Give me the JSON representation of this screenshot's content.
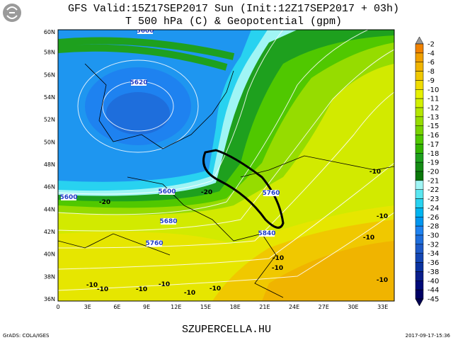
{
  "header": {
    "line1": "GFS Valid:15Z17SEP2017 Sun (Init:12Z17SEP2017 + 03h)",
    "line2": "T 500 hPa (C) & Geopotential (gpm)"
  },
  "map": {
    "lat_labels": [
      "60N",
      "58N",
      "56N",
      "54N",
      "52N",
      "50N",
      "48N",
      "46N",
      "44N",
      "42N",
      "40N",
      "38N",
      "36N"
    ],
    "lon_labels": [
      "0",
      "3E",
      "6E",
      "9E",
      "12E",
      "15E",
      "18E",
      "21E",
      "24E",
      "27E",
      "30E",
      "33E"
    ],
    "contour_labels": [
      "5600",
      "5620",
      "5600",
      "5600",
      "5680",
      "5760",
      "5760",
      "5840",
      "-20",
      "-20",
      "-10",
      "-10",
      "-10",
      "-10",
      "-10",
      "-10",
      "-10",
      "-10",
      "-10",
      "-10",
      "-10",
      "-10"
    ]
  },
  "colorbar": [
    {
      "value": -2,
      "color": "#f08200"
    },
    {
      "value": -4,
      "color": "#f0a000"
    },
    {
      "value": -6,
      "color": "#f0b400"
    },
    {
      "value": -8,
      "color": "#f0c800"
    },
    {
      "value": -9,
      "color": "#f0dc00"
    },
    {
      "value": -10,
      "color": "#e6f000"
    },
    {
      "value": -11,
      "color": "#d2f000"
    },
    {
      "value": -12,
      "color": "#b4e600"
    },
    {
      "value": -13,
      "color": "#96dc00"
    },
    {
      "value": -15,
      "color": "#78d200"
    },
    {
      "value": -16,
      "color": "#50c800"
    },
    {
      "value": -17,
      "color": "#32b400"
    },
    {
      "value": -18,
      "color": "#1ea01e"
    },
    {
      "value": -19,
      "color": "#148c14"
    },
    {
      "value": -20,
      "color": "#0a780a"
    },
    {
      "value": -21,
      "color": "#a0f5f5"
    },
    {
      "value": -22,
      "color": "#5ae6f0"
    },
    {
      "value": -23,
      "color": "#28d2f0"
    },
    {
      "value": -24,
      "color": "#00b4f0"
    },
    {
      "value": -26,
      "color": "#0096f0"
    },
    {
      "value": -28,
      "color": "#1e82f0"
    },
    {
      "value": -30,
      "color": "#1e6edc"
    },
    {
      "value": -32,
      "color": "#1e5ac8"
    },
    {
      "value": -34,
      "color": "#1446b4"
    },
    {
      "value": -36,
      "color": "#0a32a0"
    },
    {
      "value": -38,
      "color": "#0a1e8c"
    },
    {
      "value": -40,
      "color": "#000a78"
    },
    {
      "value": -44,
      "color": "#000064"
    },
    {
      "value": -45,
      "color": "#000050"
    }
  ],
  "footer": {
    "left": "GrADS: COLA/IGES",
    "center": "SZUPERCELLA.HU",
    "right": "2017-09-17-15:36"
  }
}
